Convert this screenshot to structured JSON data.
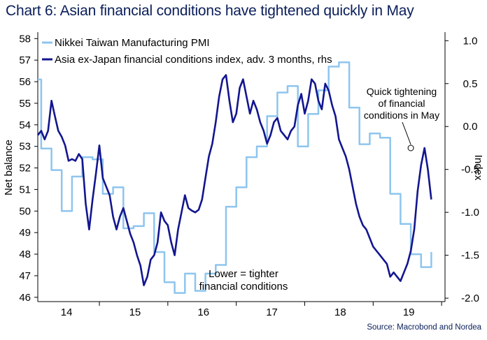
{
  "title": "Chart 6: Asian financial conditions have tightened quickly in May",
  "source": "Source: Macrobond and Nordea",
  "chart_data": {
    "type": "line",
    "x_tick_labels": [
      "14",
      "15",
      "16",
      "17",
      "18",
      "19"
    ],
    "x_ticks": [
      2014.0,
      2015.0,
      2016.0,
      2017.0,
      2018.0,
      2019.0
    ],
    "xlim": [
      2013.6,
      2019.55
    ],
    "left_axis": {
      "label": "Net balance",
      "ylim": [
        45.8,
        58.3
      ],
      "ticks": [
        46,
        47,
        48,
        49,
        50,
        51,
        52,
        53,
        54,
        55,
        56,
        57,
        58
      ]
    },
    "right_axis": {
      "label": "Index",
      "ylim": [
        -2.04,
        1.1
      ],
      "ticks": [
        -2.0,
        -1.5,
        -1.0,
        -0.5,
        0.0,
        0.5,
        1.0
      ],
      "tick_labels": [
        "-2.0",
        "-1.5",
        "-1.0",
        "-0.5",
        "0.0",
        "0.5",
        "1.0"
      ]
    },
    "series": [
      {
        "name": "Nikkei Taiwan Manufacturing PMI",
        "axis": "left",
        "color": "#8ec5ee",
        "step": true,
        "x": [
          2013.6,
          2013.65,
          2013.7,
          2013.75,
          2013.8,
          2013.85,
          2013.9,
          2013.95,
          2014.0,
          2014.05,
          2014.1,
          2014.15,
          2014.2,
          2014.25,
          2014.3,
          2014.35,
          2014.4,
          2014.45,
          2014.5,
          2014.55,
          2014.6,
          2014.65,
          2014.7,
          2014.75,
          2014.8,
          2014.85,
          2014.9,
          2014.95,
          2015.0,
          2015.05,
          2015.1,
          2015.15,
          2015.2,
          2015.25,
          2015.3,
          2015.35,
          2015.4,
          2015.45,
          2015.5,
          2015.55,
          2015.6,
          2015.65,
          2015.7,
          2015.75,
          2015.8,
          2015.85,
          2015.9,
          2015.95,
          2016.0,
          2016.05,
          2016.1,
          2016.15,
          2016.2,
          2016.25,
          2016.3,
          2016.35,
          2016.4,
          2016.45,
          2016.5,
          2016.55,
          2016.6,
          2016.65,
          2016.7,
          2016.75,
          2016.8,
          2016.85,
          2016.9,
          2016.95,
          2017.0,
          2017.05,
          2017.1,
          2017.15,
          2017.2,
          2017.25,
          2017.3,
          2017.35,
          2017.4,
          2017.45,
          2017.5,
          2017.55,
          2017.6,
          2017.65,
          2017.7,
          2017.75,
          2017.8,
          2017.85,
          2017.9,
          2017.95,
          2018.0,
          2018.05,
          2018.1,
          2018.15,
          2018.2,
          2018.25,
          2018.3,
          2018.35,
          2018.4,
          2018.45,
          2018.5,
          2018.55,
          2018.6,
          2018.65,
          2018.7,
          2018.75,
          2018.8,
          2018.85,
          2018.9,
          2018.95,
          2019.0,
          2019.05,
          2019.1,
          2019.15,
          2019.2,
          2019.25,
          2019.3,
          2019.35
        ],
        "values": [
          56.1,
          52.9,
          52.9,
          52.9,
          51.9,
          51.9,
          51.9,
          50.0,
          50.0,
          50.0,
          51.6,
          51.6,
          51.6,
          52.5,
          52.5,
          52.5,
          52.4,
          52.4,
          52.4,
          50.8,
          50.8,
          50.8,
          51.1,
          51.1,
          51.1,
          49.2,
          49.2,
          49.2,
          49.3,
          49.3,
          49.3,
          49.9,
          49.9,
          49.9,
          48.1,
          48.1,
          48.1,
          46.7,
          46.7,
          46.7,
          46.2,
          46.2,
          46.2,
          47.1,
          47.1,
          47.1,
          46.3,
          46.3,
          46.3,
          47.1,
          47.1,
          47.1,
          47.5,
          47.5,
          47.5,
          50.2,
          50.2,
          50.2,
          51.1,
          51.1,
          51.1,
          52.5,
          52.5,
          52.5,
          53.0,
          53.0,
          53.0,
          54.4,
          54.4,
          54.4,
          55.5,
          55.5,
          55.5,
          55.8,
          55.8,
          55.8,
          53.0,
          53.0,
          53.0,
          54.5,
          54.5,
          54.5,
          55.6,
          55.6,
          55.6,
          56.7,
          56.7,
          56.7,
          56.9,
          56.9,
          56.9,
          54.8,
          54.8,
          54.8,
          53.1,
          53.1,
          53.1,
          53.6,
          53.6,
          53.6,
          53.4,
          53.4,
          53.4,
          50.8,
          50.8,
          50.8,
          49.4,
          49.4,
          49.4,
          48.0,
          48.0,
          48.0,
          47.4,
          47.4,
          47.4,
          48.1
        ],
        "note": "values approximated from figure"
      },
      {
        "name": "Asia ex-Japan financial conditions index, adv. 3 months, rhs",
        "axis": "right",
        "color": "#13168f",
        "x": [
          2013.6,
          2013.65,
          2013.7,
          2013.75,
          2013.8,
          2013.85,
          2013.9,
          2013.95,
          2014.0,
          2014.05,
          2014.1,
          2014.15,
          2014.2,
          2014.25,
          2014.3,
          2014.35,
          2014.4,
          2014.45,
          2014.5,
          2014.55,
          2014.6,
          2014.65,
          2014.7,
          2014.75,
          2014.8,
          2014.85,
          2014.9,
          2014.95,
          2015.0,
          2015.05,
          2015.1,
          2015.15,
          2015.2,
          2015.25,
          2015.3,
          2015.35,
          2015.4,
          2015.45,
          2015.5,
          2015.55,
          2015.6,
          2015.65,
          2015.7,
          2015.75,
          2015.8,
          2015.85,
          2015.9,
          2015.95,
          2016.0,
          2016.05,
          2016.1,
          2016.15,
          2016.2,
          2016.25,
          2016.3,
          2016.35,
          2016.4,
          2016.45,
          2016.5,
          2016.55,
          2016.6,
          2016.65,
          2016.7,
          2016.75,
          2016.8,
          2016.85,
          2016.9,
          2016.95,
          2017.0,
          2017.05,
          2017.1,
          2017.15,
          2017.2,
          2017.25,
          2017.3,
          2017.35,
          2017.4,
          2017.45,
          2017.5,
          2017.55,
          2017.6,
          2017.65,
          2017.7,
          2017.75,
          2017.8,
          2017.85,
          2017.9,
          2017.95,
          2018.0,
          2018.05,
          2018.1,
          2018.15,
          2018.2,
          2018.25,
          2018.3,
          2018.35,
          2018.4,
          2018.45,
          2018.5,
          2018.55,
          2018.6,
          2018.65,
          2018.7,
          2018.75,
          2018.8,
          2018.85,
          2018.9,
          2018.95,
          2019.0,
          2019.05,
          2019.1,
          2019.15,
          2019.2,
          2019.25,
          2019.3,
          2019.35
        ],
        "values": [
          -0.1,
          -0.05,
          -0.15,
          -0.05,
          0.3,
          0.12,
          -0.05,
          -0.12,
          -0.22,
          -0.4,
          -0.38,
          -0.4,
          -0.32,
          -0.38,
          -0.9,
          -1.2,
          -0.85,
          -0.55,
          -0.22,
          -0.6,
          -0.7,
          -0.8,
          -1.05,
          -1.2,
          -1.05,
          -0.95,
          -1.1,
          -1.25,
          -1.35,
          -1.5,
          -1.62,
          -1.85,
          -1.75,
          -1.55,
          -1.5,
          -1.35,
          -1.0,
          -1.1,
          -1.15,
          -1.35,
          -1.5,
          -1.2,
          -1.0,
          -0.8,
          -0.95,
          -0.98,
          -1.0,
          -0.97,
          -0.85,
          -0.6,
          -0.35,
          -0.2,
          0.05,
          0.35,
          0.55,
          0.6,
          0.3,
          0.05,
          0.15,
          0.45,
          0.55,
          0.35,
          0.15,
          0.3,
          0.2,
          0.05,
          -0.05,
          -0.2,
          -0.1,
          0.05,
          0.1,
          -0.05,
          -0.1,
          -0.15,
          -0.05,
          0.0,
          0.25,
          0.38,
          0.15,
          0.3,
          0.55,
          0.5,
          0.3,
          0.2,
          0.5,
          0.42,
          0.25,
          0.12,
          -0.15,
          -0.25,
          -0.35,
          -0.5,
          -0.7,
          -0.9,
          -1.05,
          -1.15,
          -1.2,
          -1.3,
          -1.4,
          -1.45,
          -1.5,
          -1.55,
          -1.6,
          -1.75,
          -1.7,
          -1.75,
          -1.8,
          -1.7,
          -1.6,
          -1.45,
          -1.2,
          -0.75,
          -0.45,
          -0.25,
          -0.5,
          -0.85
        ]
      }
    ],
    "legend": [
      "Nikkei Taiwan Manufacturing PMI",
      "Asia ex-Japan financial conditions index, adv. 3 months, rhs"
    ],
    "annotations": {
      "quick_tightening": [
        "Quick tightening",
        "of financial",
        "conditions in May"
      ],
      "quick_tightening_point": {
        "x": 2019.05,
        "y": -0.25,
        "axis": "right"
      },
      "lower_tighter": [
        "Lower = tighter",
        "financial conditions"
      ]
    }
  }
}
